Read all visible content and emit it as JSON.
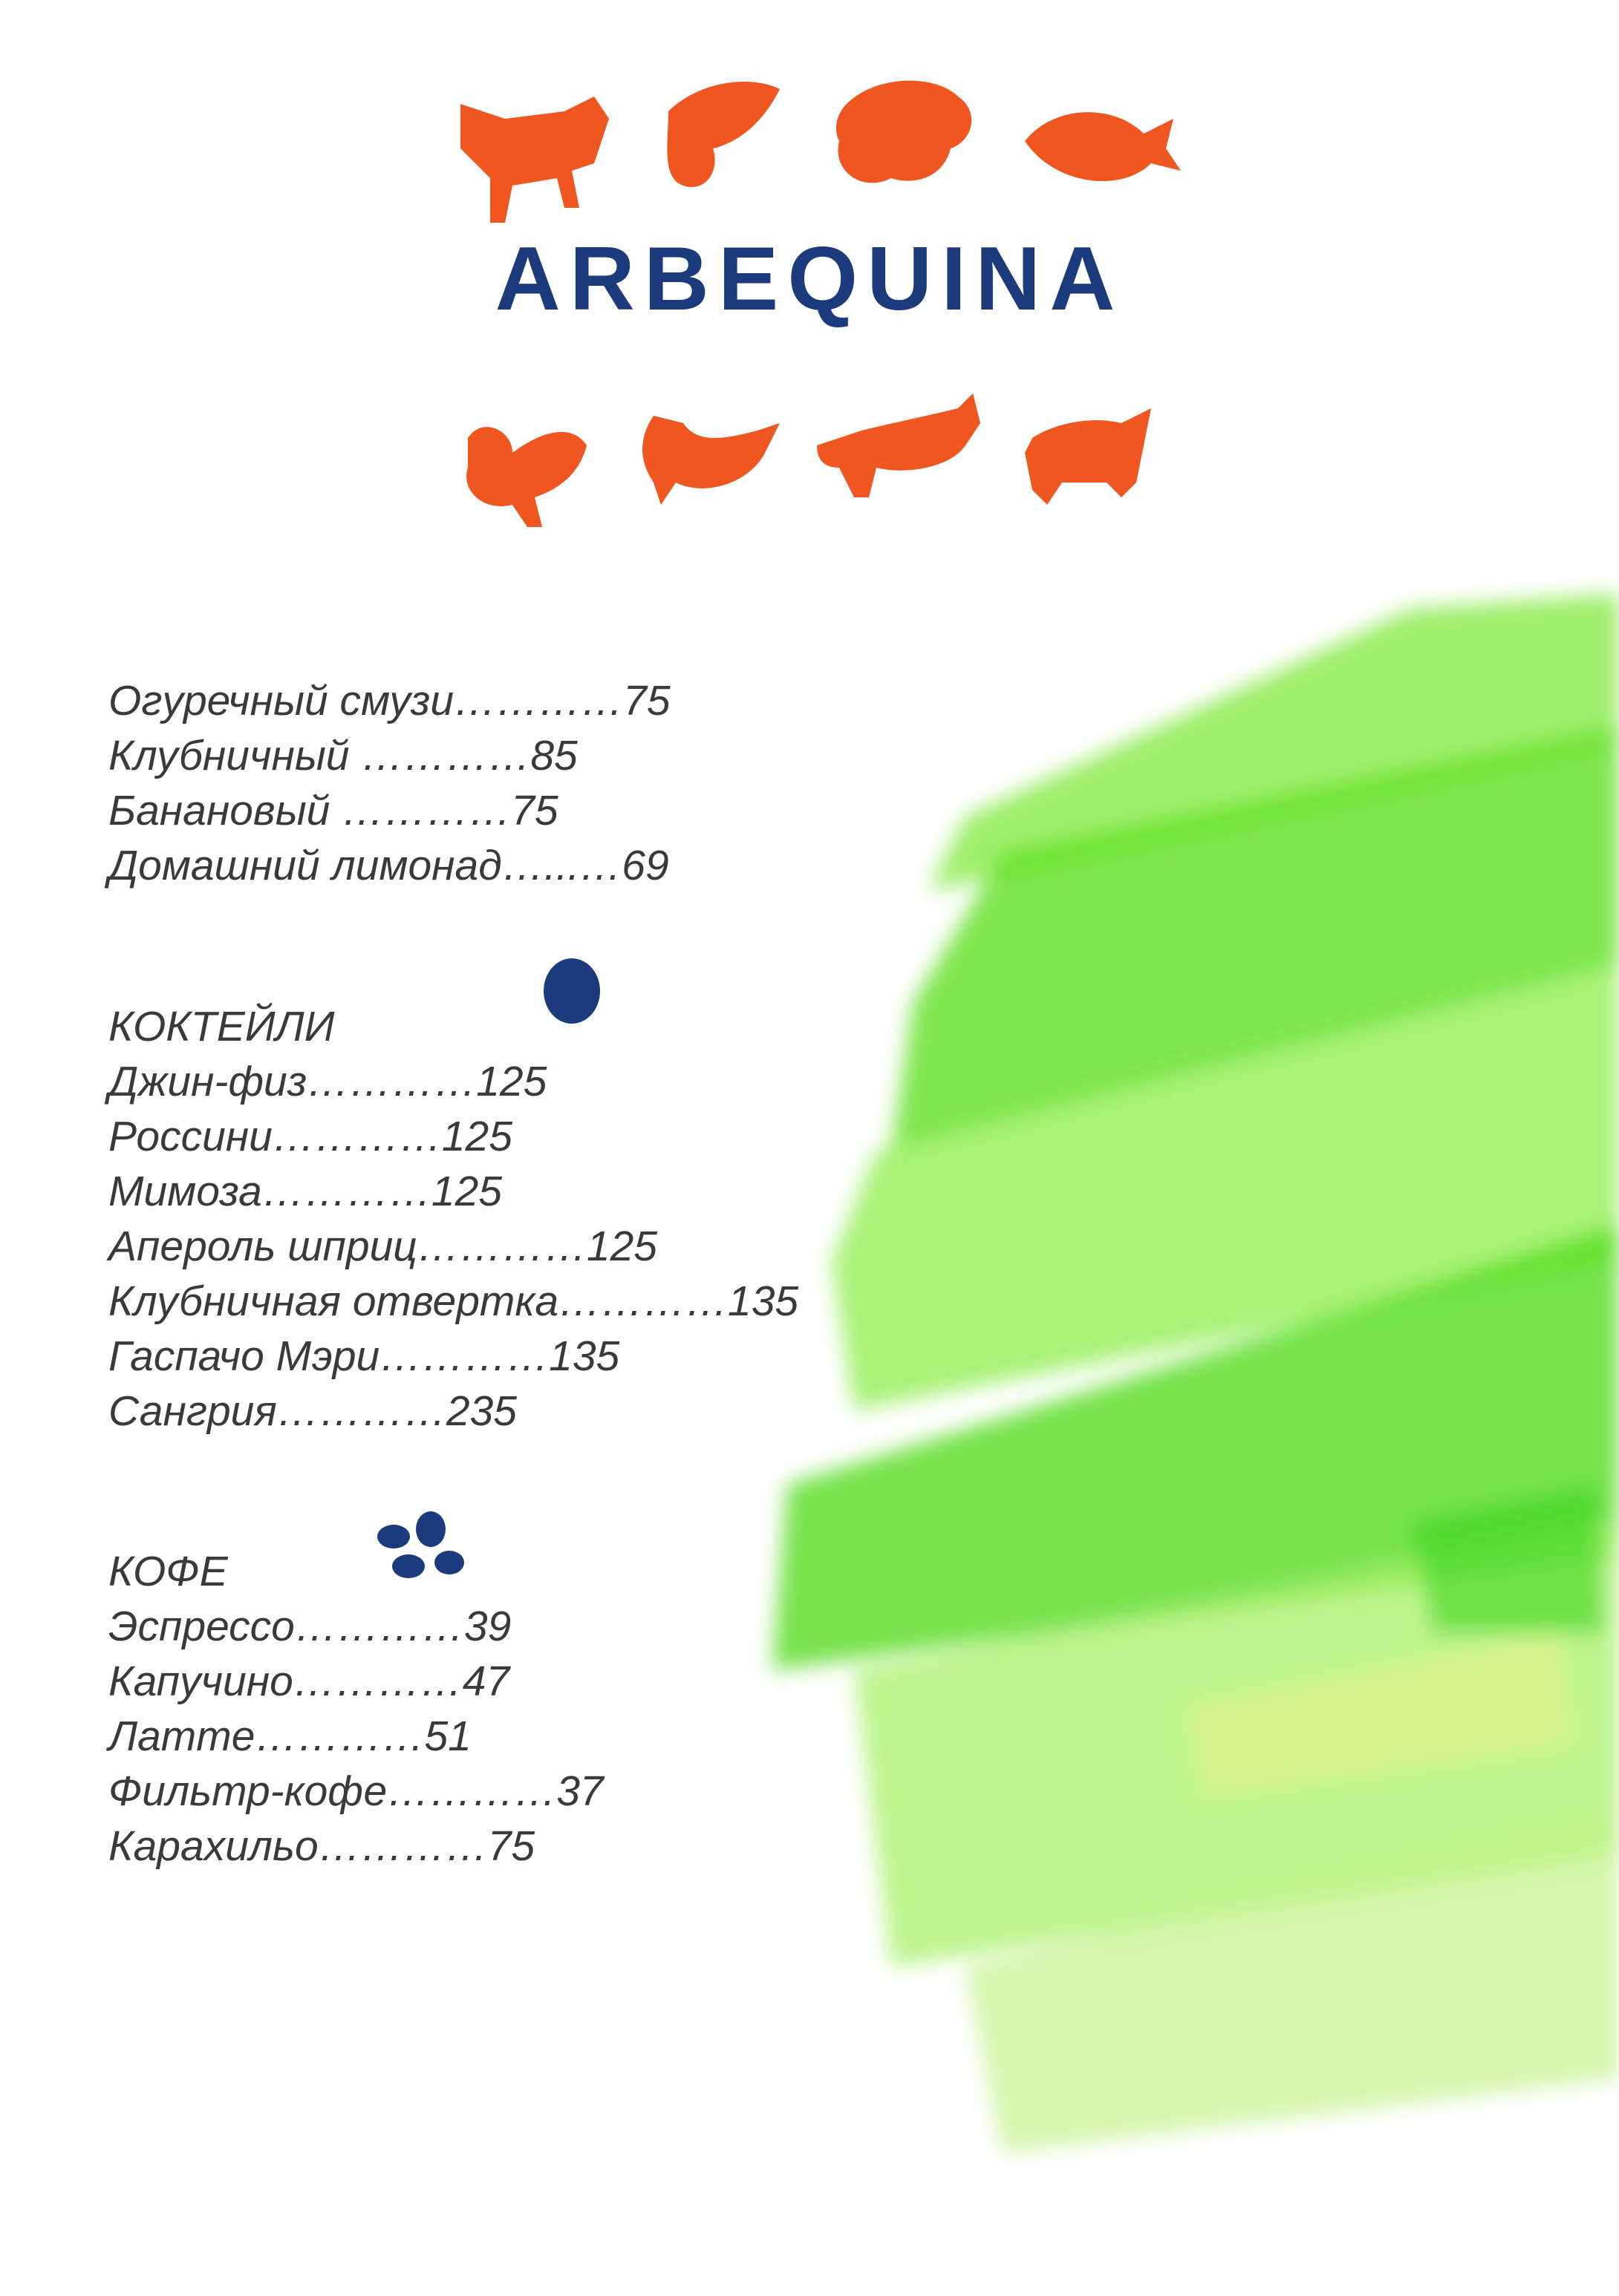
{
  "header": {
    "brand": "ARBEQUINA"
  },
  "sections": [
    {
      "items": [
        {
          "name": "Огуречный смузи",
          "leader": "…………",
          "price": 75
        },
        {
          "name": "Клубничный",
          "leader": " …………",
          "price": 85
        },
        {
          "name": "Банановый",
          "leader": " …………",
          "price": 75
        },
        {
          "name": "Домашний лимонад",
          "leader": "…...…",
          "price": 69
        }
      ]
    },
    {
      "title": "КОКТЕЙЛИ",
      "items": [
        {
          "name": "Джин-физ",
          "leader": "…………",
          "price": 125
        },
        {
          "name": "Россини",
          "leader": "…………",
          "price": 125
        },
        {
          "name": "Мимоза",
          "leader": "…………",
          "price": 125
        },
        {
          "name": "Апероль шприц",
          "leader": "…………",
          "price": 125
        },
        {
          "name": "Клубничная отвертка",
          "leader": "…………",
          "price": 135
        },
        {
          "name": "Гаспачо Мэри",
          "leader": "…………",
          "price": 135
        },
        {
          "name": "Сангрия",
          "leader": "…………",
          "price": 235
        }
      ]
    },
    {
      "title": "КОФЕ",
      "items": [
        {
          "name": "Эспрессо",
          "leader": "…………",
          "price": 39
        },
        {
          "name": "Капучино",
          "leader": "…………",
          "price": 47
        },
        {
          "name": "Латте",
          "leader": "…………",
          "price": 51
        },
        {
          "name": "Фильтр-кофе",
          "leader": "…………",
          "price": 37
        },
        {
          "name": "Карахильо",
          "leader": "…………",
          "price": 75
        }
      ]
    }
  ]
}
